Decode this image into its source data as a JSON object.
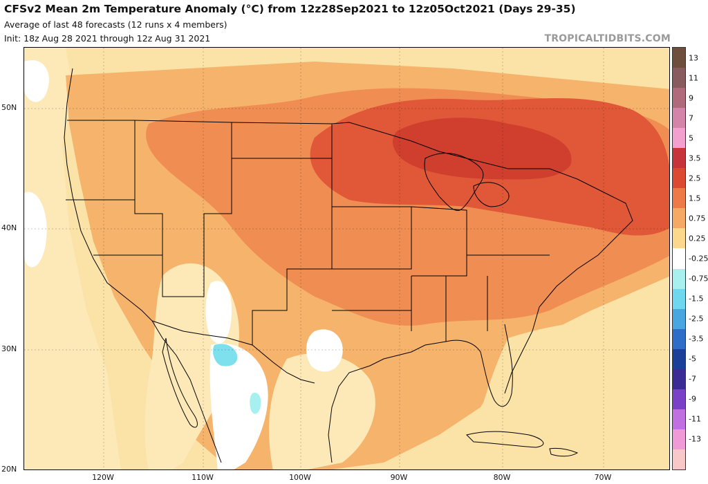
{
  "header": {
    "title": "CFSv2 Mean 2m Temperature Anomaly (°C) from 12z28Sep2021 to 12z05Oct2021 (Days 29-35)",
    "subtitle": "Average of last 48 forecasts (12 runs x 4 members)",
    "init": "Init: 18z Aug 28 2021 through 12z Aug 31 2021",
    "watermark": "TROPICALTIDBITS.COM"
  },
  "axes": {
    "latitude_labels": [
      "50N",
      "40N",
      "30N",
      "20N"
    ],
    "longitude_labels": [
      "120W",
      "110W",
      "100W",
      "90W",
      "80W",
      "70W"
    ]
  },
  "colorbar": {
    "labels": [
      "13",
      "11",
      "9",
      "7",
      "5",
      "3.5",
      "2.5",
      "1.5",
      "0.75",
      "0.25",
      "-0.25",
      "-0.75",
      "-1.5",
      "-2.5",
      "-3.5",
      "-5",
      "-7",
      "-9",
      "-11",
      "-13"
    ],
    "colors": [
      "#6e4f3e",
      "#8a5b5e",
      "#b06a7c",
      "#d484a8",
      "#f4a0cf",
      "#c8343c",
      "#dd4a32",
      "#ee7a48",
      "#f6a865",
      "#fbd88c",
      "#ffffff",
      "#a8f0f0",
      "#6fd8ee",
      "#4aa6e0",
      "#2e6ec8",
      "#1c3f9a",
      "#3a2c94",
      "#7a40c8",
      "#c070e0",
      "#f09ad8",
      "#f8c8c8"
    ]
  },
  "map": {
    "colors": {
      "ocean": "#fbe3a8",
      "land": "#f6b36c",
      "warm": "#f08d52",
      "hot": "#e05838",
      "hottest": "#d03e2e",
      "pale": "#fde9b8",
      "neutral": "#ffffff",
      "cool": "#a8f0f0",
      "cool2": "#7ee0ec",
      "lines": "#000000"
    }
  }
}
